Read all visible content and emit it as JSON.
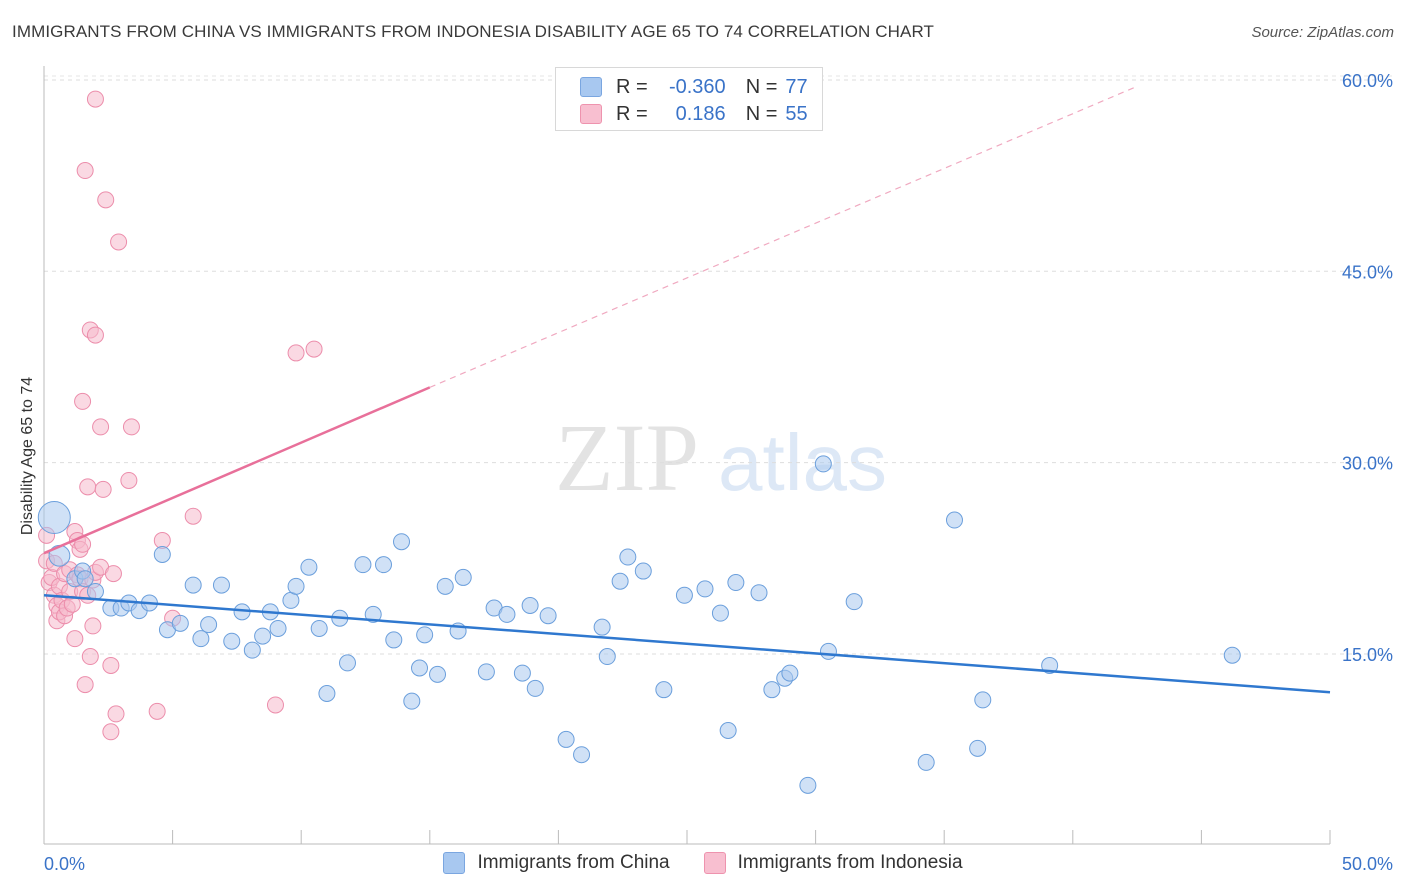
{
  "header": {
    "title": "IMMIGRANTS FROM CHINA VS IMMIGRANTS FROM INDONESIA DISABILITY AGE 65 TO 74 CORRELATION CHART",
    "source": "Source: ZipAtlas.com"
  },
  "watermark": {
    "zip": "ZIP",
    "atlas": "atlas"
  },
  "legend": {
    "rows": [
      {
        "r_label": "R =",
        "r_value": "-0.360",
        "n_label": "N =",
        "n_value": "77",
        "color": "#a8c8f0",
        "border": "#7aa6e0"
      },
      {
        "r_label": "R =",
        "r_value": "0.186",
        "n_label": "N =",
        "n_value": "55",
        "color": "#f8bfd0",
        "border": "#ee93ae"
      }
    ]
  },
  "bottom_legend": {
    "china": "Immigrants from China",
    "indonesia": "Immigrants from Indonesia"
  },
  "colors": {
    "china_fill": "#a9c9ee",
    "china_stroke": "#6b9fdc",
    "china_line": "#2f78cf",
    "indo_fill": "#f6b9cc",
    "indo_stroke": "#ec8dab",
    "indo_line": "#e8709a",
    "axis_text": "#3a73c8"
  },
  "chart_data": {
    "type": "scatter",
    "title": "IMMIGRANTS FROM CHINA VS IMMIGRANTS FROM INDONESIA DISABILITY AGE 65 TO 74 CORRELATION CHART",
    "xlabel": "",
    "ylabel": "Disability Age 65 to 74",
    "xlim": [
      0,
      50
    ],
    "ylim": [
      0,
      63
    ],
    "x_tick_labels": [
      "0.0%",
      "50.0%"
    ],
    "y_ticks": [
      15,
      30,
      45,
      60
    ],
    "y_tick_labels": [
      "15.0%",
      "30.0%",
      "45.0%",
      "60.0%"
    ],
    "grid": true,
    "series": [
      {
        "name": "Immigrants from China",
        "r": -0.36,
        "n": 77,
        "trend": {
          "x": [
            0,
            50
          ],
          "y": [
            19.6,
            12.0
          ]
        },
        "points": [
          {
            "x": 0.4,
            "y": 25.7,
            "s": 2
          },
          {
            "x": 0.6,
            "y": 22.7,
            "s": 1.3
          },
          {
            "x": 1.2,
            "y": 20.9
          },
          {
            "x": 1.5,
            "y": 21.5
          },
          {
            "x": 1.6,
            "y": 20.9
          },
          {
            "x": 2.0,
            "y": 19.9
          },
          {
            "x": 2.6,
            "y": 18.6
          },
          {
            "x": 3.0,
            "y": 18.6
          },
          {
            "x": 3.3,
            "y": 19.0
          },
          {
            "x": 3.7,
            "y": 18.4
          },
          {
            "x": 4.1,
            "y": 19.0
          },
          {
            "x": 4.6,
            "y": 22.8
          },
          {
            "x": 4.8,
            "y": 16.9
          },
          {
            "x": 5.3,
            "y": 17.4
          },
          {
            "x": 5.8,
            "y": 20.4
          },
          {
            "x": 6.1,
            "y": 16.2
          },
          {
            "x": 6.4,
            "y": 17.3
          },
          {
            "x": 6.9,
            "y": 20.4
          },
          {
            "x": 7.3,
            "y": 16.0
          },
          {
            "x": 7.7,
            "y": 18.3
          },
          {
            "x": 8.1,
            "y": 15.3
          },
          {
            "x": 8.5,
            "y": 16.4
          },
          {
            "x": 8.8,
            "y": 18.3
          },
          {
            "x": 9.1,
            "y": 17.0
          },
          {
            "x": 9.6,
            "y": 19.2
          },
          {
            "x": 9.8,
            "y": 20.3
          },
          {
            "x": 10.3,
            "y": 21.8
          },
          {
            "x": 10.7,
            "y": 17.0
          },
          {
            "x": 11.0,
            "y": 11.9
          },
          {
            "x": 11.5,
            "y": 17.8
          },
          {
            "x": 11.8,
            "y": 14.3
          },
          {
            "x": 12.4,
            "y": 22.0
          },
          {
            "x": 12.8,
            "y": 18.1
          },
          {
            "x": 13.2,
            "y": 22.0
          },
          {
            "x": 13.6,
            "y": 16.1
          },
          {
            "x": 13.9,
            "y": 23.8
          },
          {
            "x": 14.3,
            "y": 11.3
          },
          {
            "x": 14.6,
            "y": 13.9
          },
          {
            "x": 14.8,
            "y": 16.5
          },
          {
            "x": 15.3,
            "y": 13.4
          },
          {
            "x": 15.6,
            "y": 20.3
          },
          {
            "x": 16.1,
            "y": 16.8
          },
          {
            "x": 16.3,
            "y": 21.0
          },
          {
            "x": 17.2,
            "y": 13.6
          },
          {
            "x": 17.5,
            "y": 18.6
          },
          {
            "x": 18.0,
            "y": 18.1
          },
          {
            "x": 18.6,
            "y": 13.5
          },
          {
            "x": 18.9,
            "y": 18.8
          },
          {
            "x": 19.1,
            "y": 12.3
          },
          {
            "x": 19.6,
            "y": 18.0
          },
          {
            "x": 20.3,
            "y": 8.3
          },
          {
            "x": 20.9,
            "y": 7.1
          },
          {
            "x": 21.7,
            "y": 17.1
          },
          {
            "x": 21.9,
            "y": 14.8
          },
          {
            "x": 22.4,
            "y": 20.7
          },
          {
            "x": 22.7,
            "y": 22.6
          },
          {
            "x": 23.3,
            "y": 21.5
          },
          {
            "x": 24.1,
            "y": 12.2
          },
          {
            "x": 24.9,
            "y": 19.6
          },
          {
            "x": 25.7,
            "y": 20.1
          },
          {
            "x": 26.3,
            "y": 18.2
          },
          {
            "x": 26.6,
            "y": 9.0
          },
          {
            "x": 26.9,
            "y": 20.6
          },
          {
            "x": 27.8,
            "y": 19.8
          },
          {
            "x": 28.3,
            "y": 12.2
          },
          {
            "x": 28.8,
            "y": 13.1
          },
          {
            "x": 29.0,
            "y": 13.5
          },
          {
            "x": 29.7,
            "y": 4.7
          },
          {
            "x": 30.3,
            "y": 29.9
          },
          {
            "x": 30.5,
            "y": 15.2
          },
          {
            "x": 31.5,
            "y": 19.1
          },
          {
            "x": 34.3,
            "y": 6.5
          },
          {
            "x": 35.4,
            "y": 25.5
          },
          {
            "x": 36.3,
            "y": 7.6
          },
          {
            "x": 36.5,
            "y": 11.4
          },
          {
            "x": 39.1,
            "y": 14.1
          },
          {
            "x": 46.2,
            "y": 14.9
          }
        ]
      },
      {
        "name": "Immigrants from Indonesia",
        "r": 0.186,
        "n": 55,
        "trend": {
          "x": [
            0,
            15
          ],
          "y": [
            22.9,
            35.9
          ],
          "dashed_to": {
            "x": [
              15,
              42.5
            ],
            "y": [
              35.9,
              59.5
            ]
          }
        },
        "points": [
          {
            "x": 0.1,
            "y": 24.3
          },
          {
            "x": 0.1,
            "y": 22.3
          },
          {
            "x": 0.2,
            "y": 20.6
          },
          {
            "x": 0.3,
            "y": 21.0
          },
          {
            "x": 0.4,
            "y": 22.1
          },
          {
            "x": 0.4,
            "y": 19.6
          },
          {
            "x": 0.5,
            "y": 18.8
          },
          {
            "x": 0.5,
            "y": 17.6
          },
          {
            "x": 0.6,
            "y": 20.3
          },
          {
            "x": 0.6,
            "y": 18.3
          },
          {
            "x": 0.7,
            "y": 19.2
          },
          {
            "x": 0.8,
            "y": 21.3
          },
          {
            "x": 0.8,
            "y": 18.0
          },
          {
            "x": 0.9,
            "y": 18.6
          },
          {
            "x": 1.0,
            "y": 19.9
          },
          {
            "x": 1.0,
            "y": 21.6
          },
          {
            "x": 1.1,
            "y": 18.9
          },
          {
            "x": 1.2,
            "y": 24.6
          },
          {
            "x": 1.2,
            "y": 16.2
          },
          {
            "x": 1.3,
            "y": 23.9
          },
          {
            "x": 1.3,
            "y": 21.2
          },
          {
            "x": 1.4,
            "y": 20.9
          },
          {
            "x": 1.4,
            "y": 23.2
          },
          {
            "x": 1.5,
            "y": 23.6
          },
          {
            "x": 1.5,
            "y": 19.9
          },
          {
            "x": 1.5,
            "y": 34.8
          },
          {
            "x": 1.6,
            "y": 12.6
          },
          {
            "x": 1.6,
            "y": 52.9
          },
          {
            "x": 1.7,
            "y": 28.1
          },
          {
            "x": 1.7,
            "y": 19.6
          },
          {
            "x": 1.8,
            "y": 14.8
          },
          {
            "x": 1.8,
            "y": 40.4
          },
          {
            "x": 1.9,
            "y": 20.8
          },
          {
            "x": 2.0,
            "y": 58.5
          },
          {
            "x": 2.0,
            "y": 40.0
          },
          {
            "x": 2.0,
            "y": 21.4
          },
          {
            "x": 2.2,
            "y": 21.8
          },
          {
            "x": 2.2,
            "y": 32.8
          },
          {
            "x": 2.3,
            "y": 27.9
          },
          {
            "x": 2.4,
            "y": 50.6
          },
          {
            "x": 2.6,
            "y": 8.9
          },
          {
            "x": 2.6,
            "y": 14.1
          },
          {
            "x": 2.7,
            "y": 21.3
          },
          {
            "x": 2.8,
            "y": 10.3
          },
          {
            "x": 2.9,
            "y": 47.3
          },
          {
            "x": 3.3,
            "y": 28.6
          },
          {
            "x": 3.4,
            "y": 32.8
          },
          {
            "x": 4.4,
            "y": 10.5
          },
          {
            "x": 4.6,
            "y": 23.9
          },
          {
            "x": 5.0,
            "y": 17.8
          },
          {
            "x": 5.8,
            "y": 25.8
          },
          {
            "x": 9.0,
            "y": 11.0
          },
          {
            "x": 9.8,
            "y": 38.6
          },
          {
            "x": 10.5,
            "y": 38.9
          },
          {
            "x": 1.9,
            "y": 17.2
          }
        ]
      }
    ]
  }
}
